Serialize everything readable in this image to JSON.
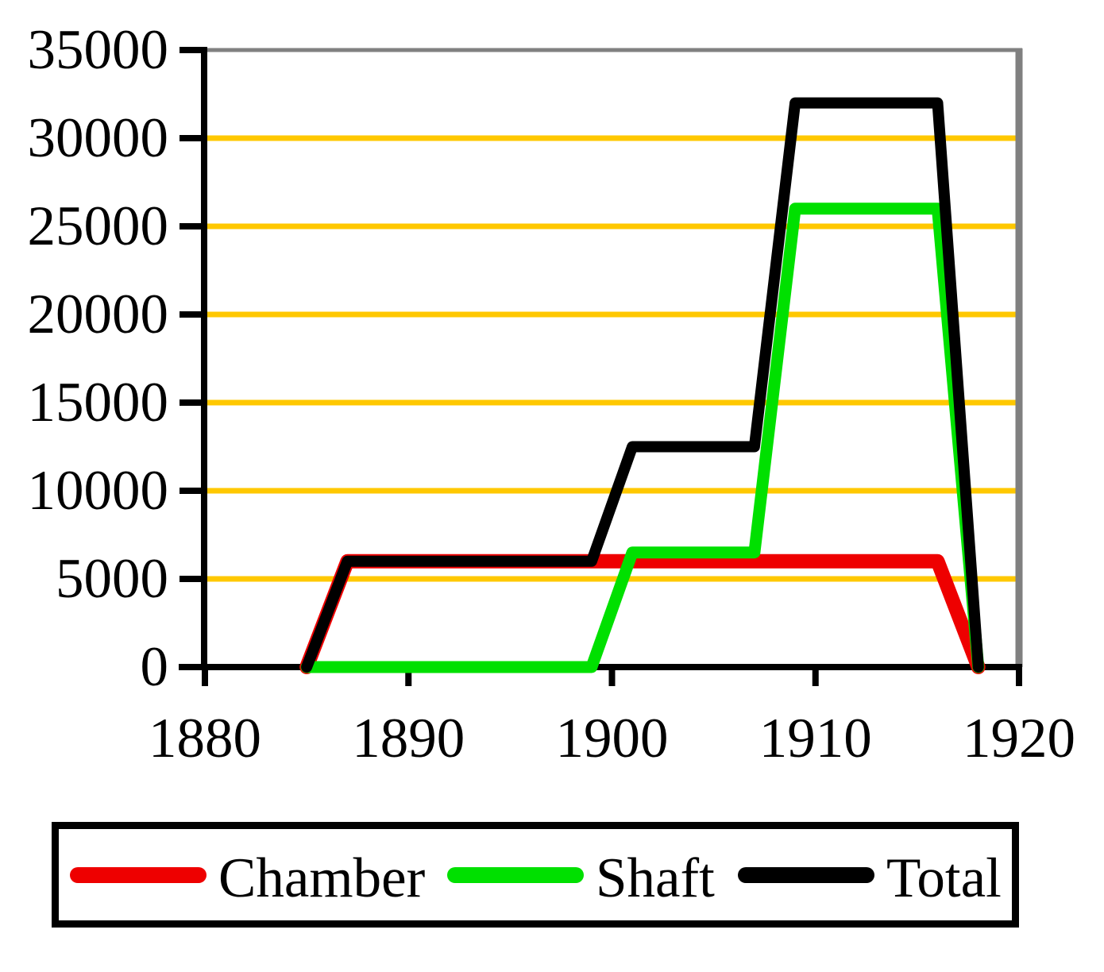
{
  "chart_data": {
    "type": "line",
    "title": "",
    "xlabel": "",
    "ylabel": "",
    "xlim": [
      1880,
      1920
    ],
    "ylim": [
      0,
      35000
    ],
    "x_ticks": [
      1880,
      1890,
      1900,
      1910,
      1920
    ],
    "y_ticks": [
      0,
      5000,
      10000,
      15000,
      20000,
      25000,
      30000,
      35000
    ],
    "grid": "horizontal",
    "gridline_values": [
      5000,
      10000,
      15000,
      20000,
      25000,
      30000
    ],
    "colors": {
      "gridline": "#FFC800",
      "axis": "#000000",
      "plot_border": "#808080",
      "background": "#FFFFFF"
    },
    "legend_position": "bottom",
    "series": [
      {
        "name": "Chamber",
        "color": "#EE0000",
        "points": [
          [
            1885,
            0
          ],
          [
            1887,
            6000
          ],
          [
            1916,
            6000
          ],
          [
            1918,
            0
          ]
        ]
      },
      {
        "name": "Shaft",
        "color": "#00E000",
        "points": [
          [
            1885,
            0
          ],
          [
            1899,
            0
          ],
          [
            1901,
            6500
          ],
          [
            1907,
            6500
          ],
          [
            1909,
            26000
          ],
          [
            1916,
            26000
          ],
          [
            1918,
            0
          ]
        ]
      },
      {
        "name": "Total",
        "color": "#000000",
        "points": [
          [
            1885,
            0
          ],
          [
            1887,
            6000
          ],
          [
            1899,
            6000
          ],
          [
            1901,
            12500
          ],
          [
            1907,
            12500
          ],
          [
            1909,
            32000
          ],
          [
            1916,
            32000
          ],
          [
            1918,
            0
          ]
        ]
      }
    ]
  }
}
